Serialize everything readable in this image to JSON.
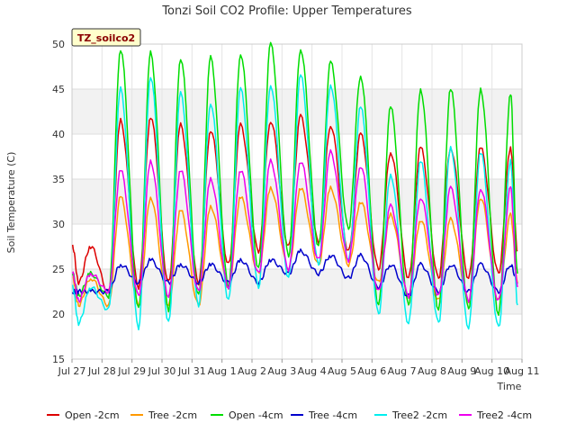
{
  "chart_data": {
    "type": "line",
    "title": "Tonzi Soil CO2 Profile: Upper Temperatures",
    "xlabel": "Time",
    "ylabel": "Soil Temperature (C)",
    "ylim": [
      15,
      50
    ],
    "y_ticks": [
      15,
      20,
      25,
      30,
      35,
      40,
      45,
      50
    ],
    "xlim": [
      0,
      15
    ],
    "x_ticks": [
      {
        "day": 0,
        "label": "Jul 27"
      },
      {
        "day": 1,
        "label": "Jul 28"
      },
      {
        "day": 2,
        "label": "Jul 29"
      },
      {
        "day": 3,
        "label": "Jul 30"
      },
      {
        "day": 4,
        "label": "Jul 31"
      },
      {
        "day": 5,
        "label": "Aug 1"
      },
      {
        "day": 6,
        "label": "Aug 2"
      },
      {
        "day": 7,
        "label": "Aug 3"
      },
      {
        "day": 8,
        "label": "Aug 4"
      },
      {
        "day": 9,
        "label": "Aug 5"
      },
      {
        "day": 10,
        "label": "Aug 6"
      },
      {
        "day": 11,
        "label": "Aug 7"
      },
      {
        "day": 12,
        "label": "Aug 8"
      },
      {
        "day": 13,
        "label": "Aug 9"
      },
      {
        "day": 14,
        "label": "Aug 10"
      },
      {
        "day": 15,
        "label": "Aug 11"
      }
    ],
    "grid": true,
    "banded_background": true,
    "legend_position": "bottom",
    "tag_label": "TZ_soilco2",
    "series": [
      {
        "name": "Open -2cm",
        "color": "#dd0000",
        "daily_min": [
          23.5,
          22.5,
          23.0,
          23.5,
          23.5,
          25.5,
          27.0,
          27.5,
          28.0,
          27.0,
          25.0,
          24.0,
          24.0,
          24.0,
          24.5
        ],
        "daily_max": [
          27.5,
          41.5,
          42.0,
          41.0,
          40.5,
          41.0,
          41.5,
          42.0,
          41.0,
          40.0,
          38.0,
          38.5,
          38.5,
          38.5,
          38.5
        ],
        "end": 27.0
      },
      {
        "name": "Tree -2cm",
        "color": "#ff9900",
        "daily_min": [
          21.0,
          21.0,
          21.0,
          21.0,
          21.0,
          23.0,
          24.5,
          25.0,
          25.5,
          25.5,
          23.5,
          22.0,
          21.5,
          21.5,
          21.5
        ],
        "daily_max": [
          24.0,
          33.0,
          33.0,
          31.5,
          32.0,
          33.0,
          34.0,
          34.0,
          34.0,
          32.5,
          31.0,
          30.5,
          30.5,
          33.0,
          31.0
        ],
        "end": 23.5
      },
      {
        "name": "Open -4cm",
        "color": "#00dd00",
        "daily_min": [
          22.0,
          22.0,
          20.5,
          20.5,
          22.0,
          23.0,
          25.0,
          26.5,
          27.5,
          29.5,
          21.0,
          21.0,
          20.5,
          20.5,
          20.0
        ],
        "daily_max": [
          24.5,
          49.5,
          49.0,
          48.5,
          48.5,
          49.0,
          50.0,
          49.5,
          48.0,
          46.5,
          43.0,
          45.0,
          45.0,
          45.0,
          44.5
        ],
        "end": 24.5
      },
      {
        "name": "Tree -4cm",
        "color": "#0000cc",
        "daily_min": [
          22.5,
          22.5,
          23.5,
          23.5,
          23.5,
          23.5,
          23.5,
          24.5,
          24.5,
          24.0,
          23.0,
          22.0,
          22.5,
          22.5,
          22.5
        ],
        "daily_max": [
          22.5,
          25.5,
          26.0,
          25.5,
          25.5,
          26.0,
          26.0,
          27.0,
          26.5,
          26.5,
          25.5,
          25.5,
          25.5,
          25.5,
          25.5
        ],
        "end": 23.5
      },
      {
        "name": "Tree2 -2cm",
        "color": "#00eeee",
        "daily_min": [
          19.0,
          20.5,
          18.5,
          19.0,
          21.0,
          21.5,
          23.0,
          24.0,
          25.5,
          26.0,
          20.0,
          19.0,
          19.0,
          18.5,
          18.5
        ],
        "daily_max": [
          23.0,
          45.0,
          46.5,
          44.5,
          43.5,
          45.0,
          45.5,
          46.5,
          45.5,
          43.0,
          35.5,
          37.0,
          38.5,
          38.0,
          37.0
        ],
        "end": 21.0
      },
      {
        "name": "Tree2 -4cm",
        "color": "#ee00ee",
        "daily_min": [
          21.5,
          22.5,
          22.0,
          22.0,
          22.5,
          23.0,
          24.5,
          25.0,
          26.0,
          26.0,
          22.5,
          22.0,
          22.0,
          21.5,
          21.5
        ],
        "daily_max": [
          24.5,
          36.0,
          37.0,
          36.0,
          35.0,
          36.0,
          37.0,
          37.0,
          38.0,
          36.5,
          32.0,
          33.0,
          34.0,
          34.0,
          34.0
        ],
        "end": 23.0
      }
    ]
  }
}
